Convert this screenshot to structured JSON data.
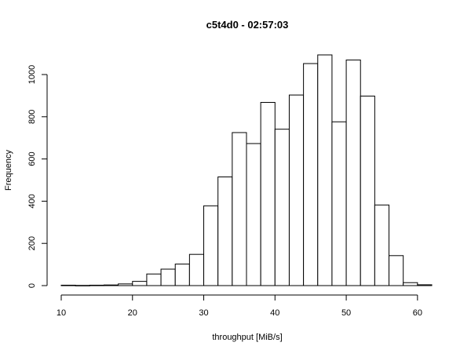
{
  "chart_data": {
    "type": "bar",
    "title": "c5t4d0 - 02:57:03",
    "xlabel": "throughput [MiB/s]",
    "ylabel": "Frequency",
    "xlim": [
      10,
      62
    ],
    "ylim": [
      0,
      1100
    ],
    "bin_width": 2,
    "bins": [
      {
        "x0": 10,
        "x1": 12,
        "count": 2
      },
      {
        "x0": 12,
        "x1": 14,
        "count": 1
      },
      {
        "x0": 14,
        "x1": 16,
        "count": 2
      },
      {
        "x0": 16,
        "x1": 18,
        "count": 3
      },
      {
        "x0": 18,
        "x1": 20,
        "count": 8
      },
      {
        "x0": 20,
        "x1": 22,
        "count": 20
      },
      {
        "x0": 22,
        "x1": 24,
        "count": 55
      },
      {
        "x0": 24,
        "x1": 26,
        "count": 78
      },
      {
        "x0": 26,
        "x1": 28,
        "count": 102
      },
      {
        "x0": 28,
        "x1": 30,
        "count": 148
      },
      {
        "x0": 30,
        "x1": 32,
        "count": 378
      },
      {
        "x0": 32,
        "x1": 34,
        "count": 515
      },
      {
        "x0": 34,
        "x1": 36,
        "count": 725
      },
      {
        "x0": 36,
        "x1": 38,
        "count": 673
      },
      {
        "x0": 38,
        "x1": 40,
        "count": 868
      },
      {
        "x0": 40,
        "x1": 42,
        "count": 741
      },
      {
        "x0": 42,
        "x1": 44,
        "count": 903
      },
      {
        "x0": 44,
        "x1": 46,
        "count": 1052
      },
      {
        "x0": 46,
        "x1": 48,
        "count": 1093
      },
      {
        "x0": 48,
        "x1": 50,
        "count": 776
      },
      {
        "x0": 50,
        "x1": 52,
        "count": 1069
      },
      {
        "x0": 52,
        "x1": 54,
        "count": 898
      },
      {
        "x0": 54,
        "x1": 56,
        "count": 382
      },
      {
        "x0": 56,
        "x1": 58,
        "count": 142
      },
      {
        "x0": 58,
        "x1": 60,
        "count": 14
      },
      {
        "x0": 60,
        "x1": 62,
        "count": 4
      }
    ],
    "xticks": [
      10,
      20,
      30,
      40,
      50,
      60
    ],
    "yticks": [
      0,
      200,
      400,
      600,
      800,
      1000
    ],
    "grid": false,
    "legend": "none"
  }
}
